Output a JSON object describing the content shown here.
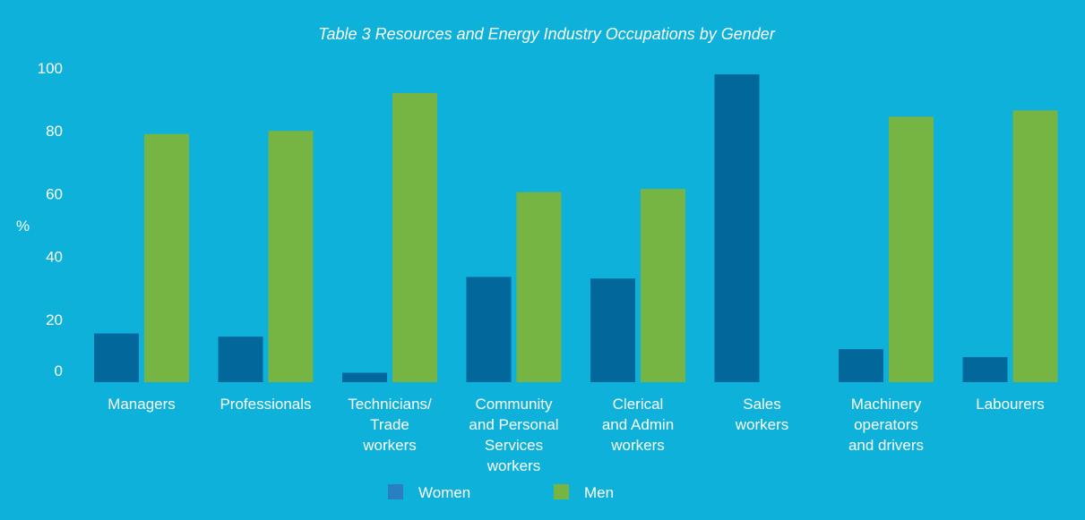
{
  "chart_data": {
    "type": "bar",
    "title": "Table 3 Resources and Energy Industry Occupations by Gender",
    "ylabel": "%",
    "xlabel": "",
    "ylim": [
      0,
      100
    ],
    "yticks": [
      0,
      20,
      40,
      60,
      80,
      100
    ],
    "grid": false,
    "legend_position": "bottom",
    "categories": [
      [
        "Managers"
      ],
      [
        "Professionals"
      ],
      [
        "Technicians/",
        "Trade",
        "workers"
      ],
      [
        "Community",
        "and Personal",
        "Services",
        "workers"
      ],
      [
        "Clerical",
        "and Admin",
        "workers"
      ],
      [
        "Sales",
        "workers"
      ],
      [
        "Machinery",
        "operators",
        "and drivers"
      ],
      [
        "Labourers"
      ]
    ],
    "series": [
      {
        "name": "Women",
        "color": "#02689c",
        "legend_color": "#2a7fc4",
        "values": [
          15.5,
          14.5,
          3,
          33.5,
          33,
          98,
          10.5,
          8
        ]
      },
      {
        "name": "Men",
        "color": "#76b444",
        "legend_color": "#76b444",
        "values": [
          79,
          80,
          92,
          60.5,
          61.5,
          0,
          84.5,
          86.5
        ]
      }
    ]
  }
}
